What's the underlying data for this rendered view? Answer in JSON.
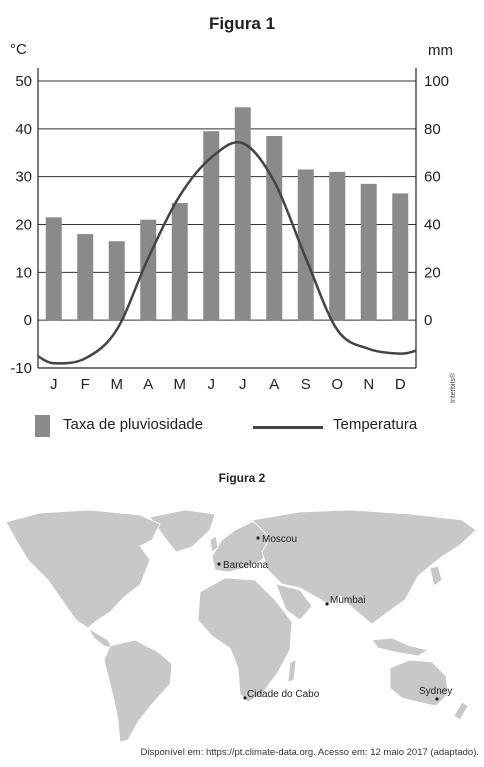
{
  "figure1": {
    "title": "Figura 1",
    "unit_left": "°C",
    "unit_right": "mm",
    "legend": {
      "bars": "Taxa de pluviosidade",
      "line": "Temperatura"
    },
    "credit": "Interbits®"
  },
  "chart_data": {
    "type": "bar",
    "categories": [
      "J",
      "F",
      "M",
      "A",
      "M",
      "J",
      "J",
      "A",
      "S",
      "O",
      "N",
      "D"
    ],
    "series": [
      {
        "name": "Taxa de pluviosidade",
        "type": "bar",
        "axis": "right",
        "values": [
          43,
          36,
          33,
          42,
          49,
          79,
          89,
          77,
          63,
          62,
          57,
          53
        ]
      },
      {
        "name": "Temperatura",
        "type": "line",
        "axis": "left",
        "values": [
          -9,
          -8,
          -2,
          13,
          26,
          34,
          37,
          29,
          13,
          -2,
          -6,
          -7
        ]
      }
    ],
    "left_axis": {
      "label": "°C",
      "ticks": [
        50,
        40,
        30,
        20,
        10,
        0,
        -10
      ],
      "ylim": [
        -10,
        50
      ]
    },
    "right_axis": {
      "label": "mm",
      "ticks": [
        100,
        80,
        60,
        40,
        20,
        0
      ],
      "ylim": [
        -20,
        100
      ]
    },
    "grid": true,
    "colors": {
      "bar": "#8a8a8a",
      "line": "#444444",
      "grid": "#333333"
    }
  },
  "figure2": {
    "title": "Figura 2",
    "cities": [
      "Moscou",
      "Barcelona",
      "Mumbai",
      "Cidade do Cabo",
      "Sydney"
    ],
    "land_color": "#c8c8c8"
  },
  "source": "Disponível em: https://pt.climate-data.org. Acesso em: 12 maio 2017 (adaptado)."
}
